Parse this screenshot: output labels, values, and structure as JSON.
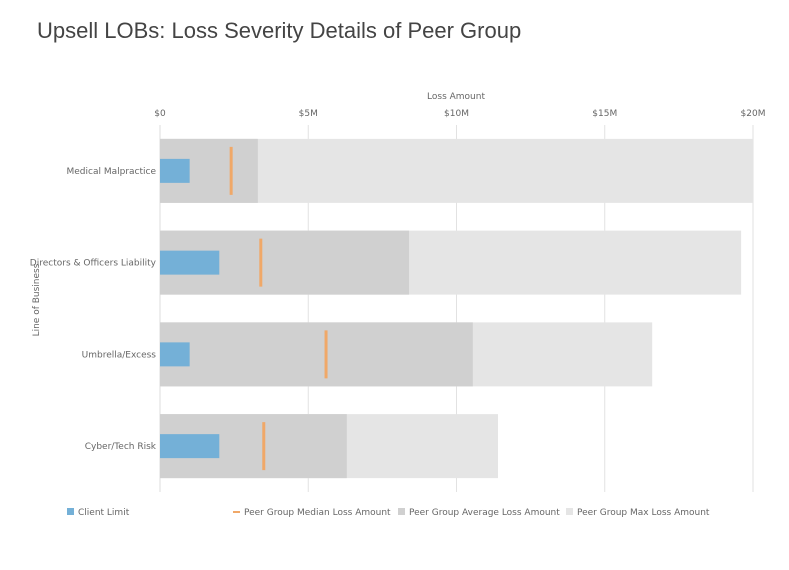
{
  "title": "Upsell LOBs: Loss Severity Details of Peer Group",
  "chart_data": {
    "type": "bar",
    "subtype": "horizontal-bullet",
    "title": "Upsell LOBs: Loss Severity Details of Peer Group",
    "xlabel": "Loss Amount",
    "ylabel": "Line of Business",
    "x_axis_position": "top",
    "xlim": [
      0,
      20
    ],
    "x_units": "$M",
    "x_ticks": [
      0,
      5,
      10,
      15,
      20
    ],
    "x_tick_labels": [
      "$0",
      "$5M",
      "$10M",
      "$15M",
      "$20M"
    ],
    "grid": true,
    "legend_position": "bottom",
    "categories": [
      "Medical Malpractice",
      "Directors & Officers Liability",
      "Umbrella/Excess",
      "Cyber/Tech Risk"
    ],
    "series": [
      {
        "name": "Client Limit",
        "kind": "bar",
        "color": "#74b0d7",
        "values": [
          1.0,
          2.0,
          1.0,
          2.0
        ]
      },
      {
        "name": "Peer Group Median Loss Amount",
        "kind": "marker",
        "color": "#f0a868",
        "values": [
          2.4,
          3.4,
          5.6,
          3.5
        ]
      },
      {
        "name": "Peer Group Average Loss Amount",
        "kind": "range",
        "color": "#d0d0d0",
        "values": [
          3.3,
          8.4,
          10.55,
          6.3
        ]
      },
      {
        "name": "Peer Group Max Loss Amount",
        "kind": "range",
        "color": "#e5e5e5",
        "values": [
          20.0,
          19.6,
          16.6,
          11.4
        ]
      }
    ]
  }
}
